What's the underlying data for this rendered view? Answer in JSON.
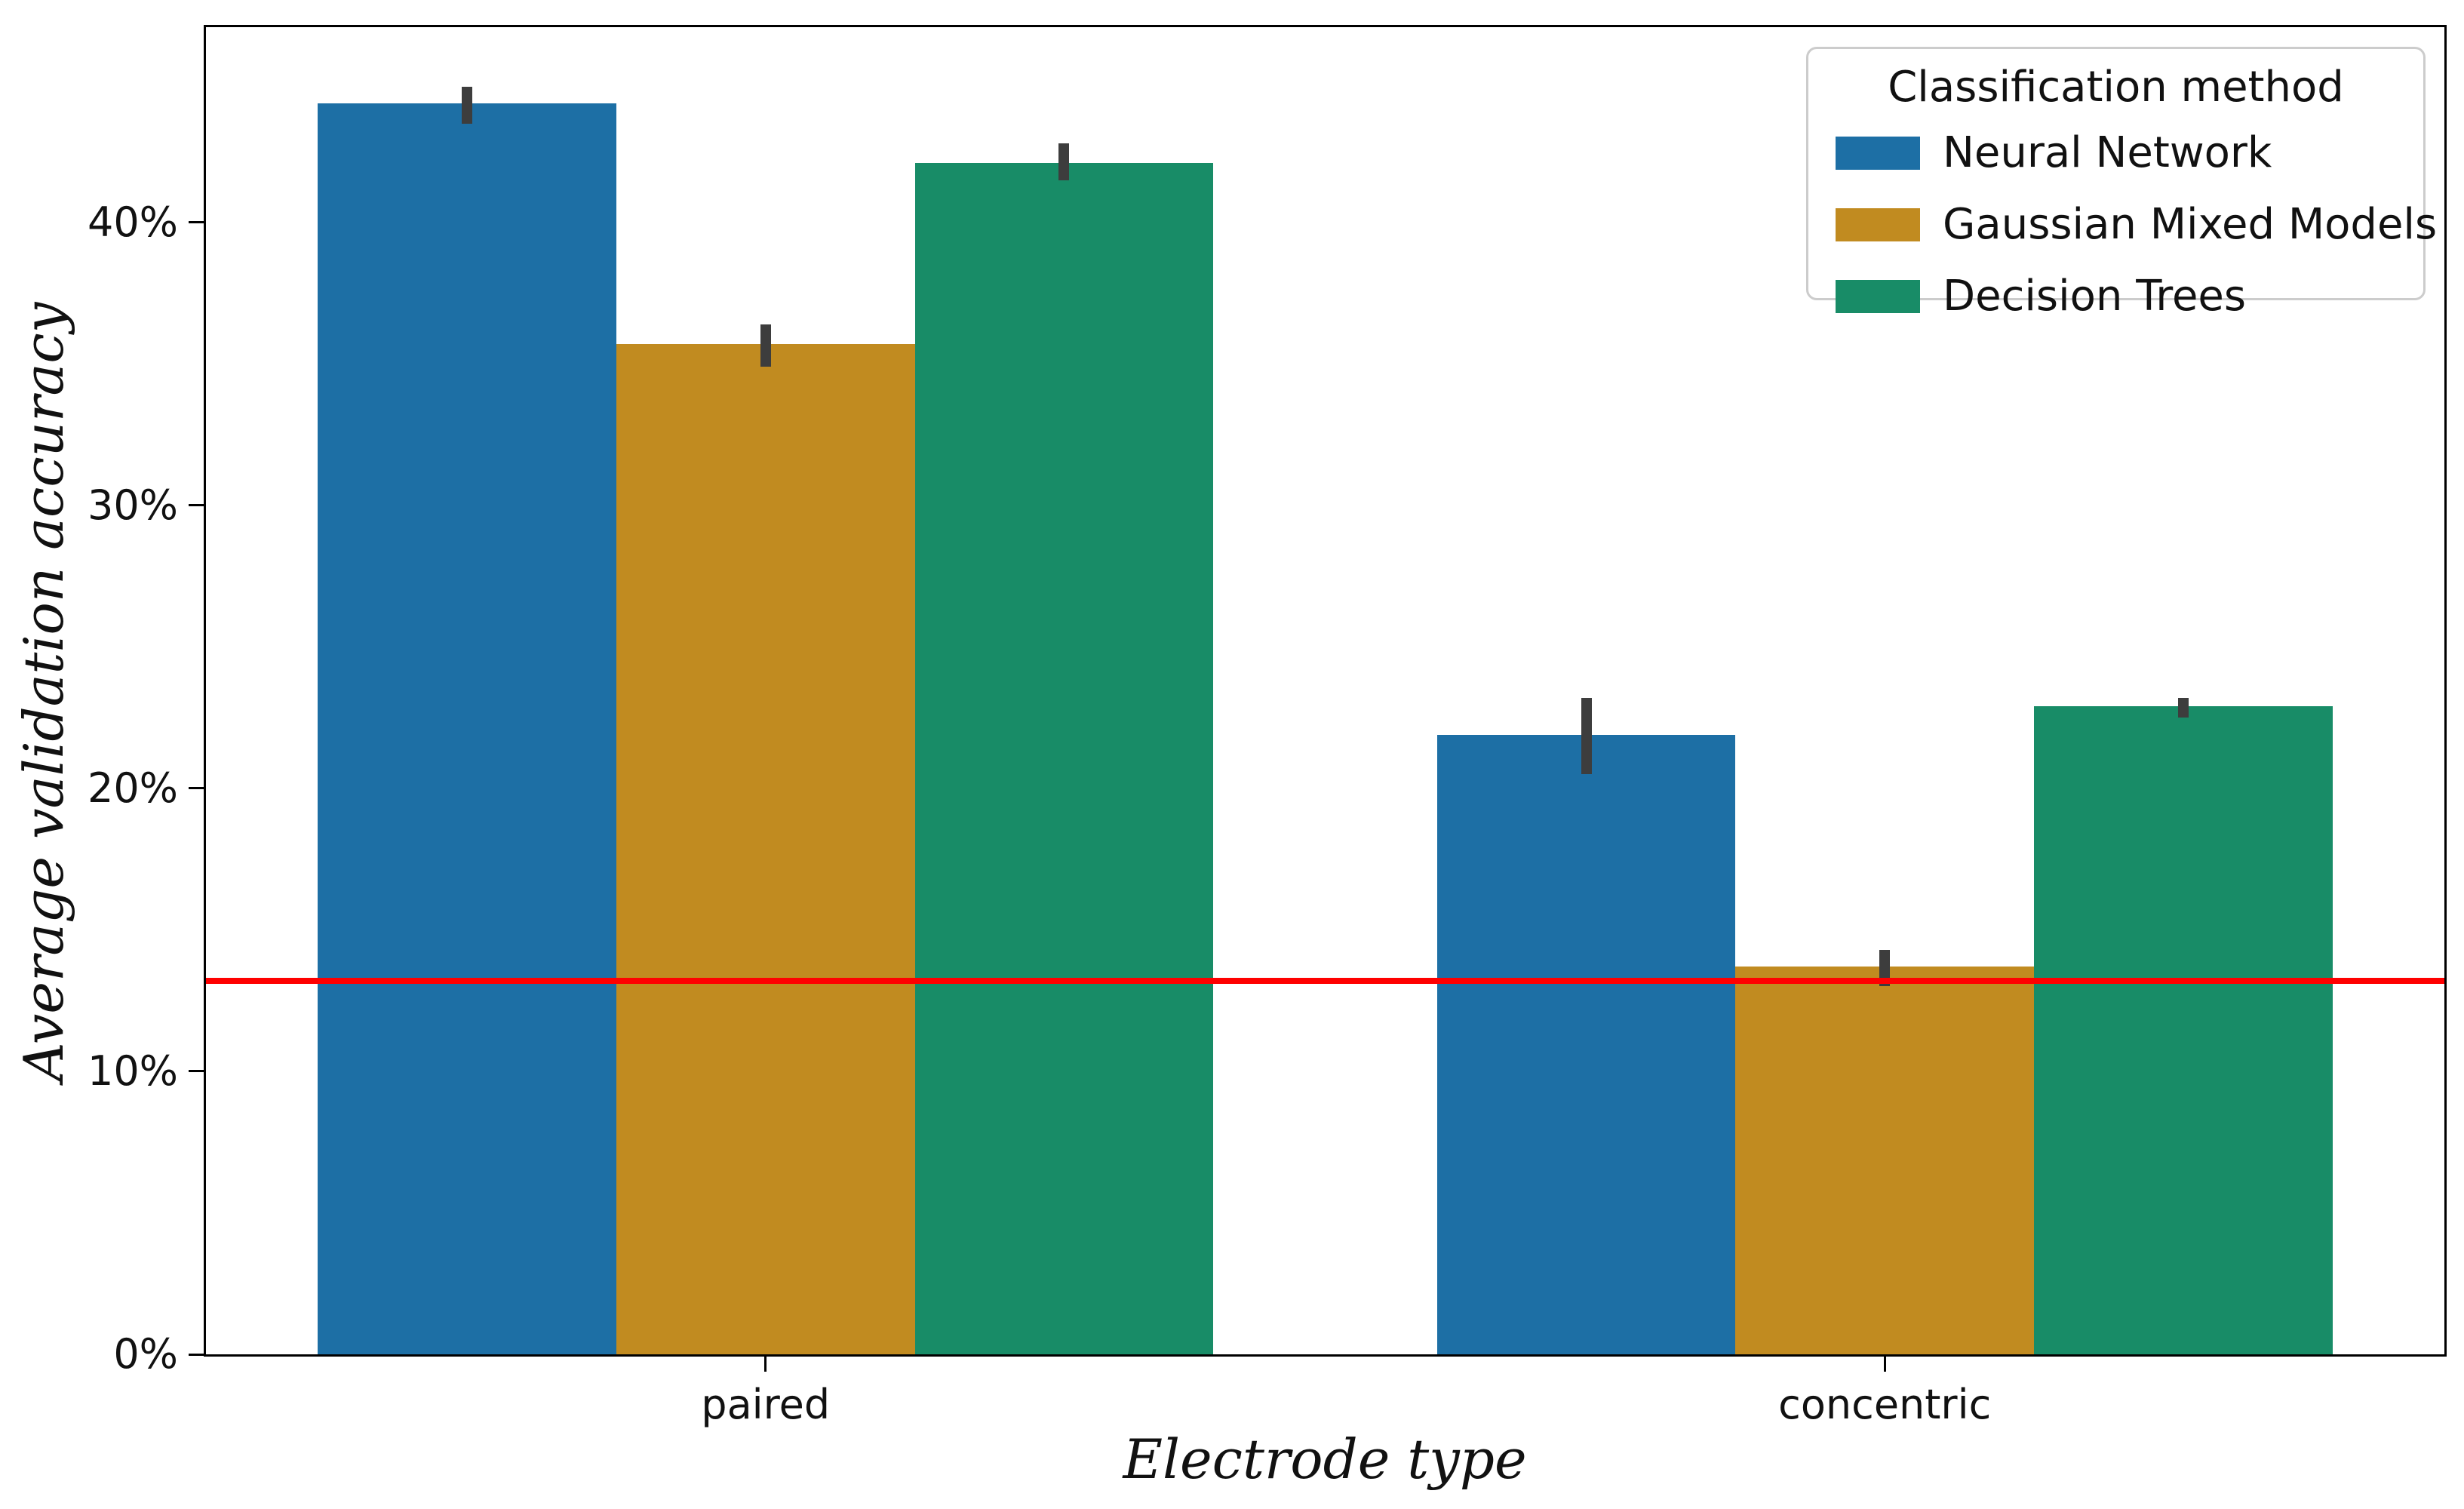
{
  "chart_data": {
    "type": "bar",
    "title": "",
    "xlabel": "Electrode type",
    "ylabel": "Average validation accuracy",
    "categories": [
      "paired",
      "concentric"
    ],
    "series": [
      {
        "name": "Neural Network",
        "color": "#1d6fa5",
        "values": [
          44.2,
          21.9
        ],
        "err_low": [
          43.5,
          20.5
        ],
        "err_high": [
          44.8,
          23.2
        ]
      },
      {
        "name": "Gaussian Mixed Models",
        "color": "#c18b20",
        "values": [
          35.7,
          13.7
        ],
        "err_low": [
          34.9,
          13.0
        ],
        "err_high": [
          36.4,
          14.3
        ]
      },
      {
        "name": "Decision Trees",
        "color": "#188c67",
        "values": [
          42.1,
          22.9
        ],
        "err_low": [
          41.5,
          22.5
        ],
        "err_high": [
          42.8,
          23.2
        ]
      }
    ],
    "reference_line": {
      "value": 13.2,
      "color": "#ff0000"
    },
    "error_bar_color": "#3d3d3d",
    "y_tick_labels": [
      "0%",
      "10%",
      "20%",
      "30%",
      "40%"
    ],
    "y_tick_values": [
      0,
      10,
      20,
      30,
      40
    ],
    "ylim": [
      0,
      46.9
    ],
    "xlim": [
      -0.5,
      1.5
    ],
    "group_width": 0.8,
    "grid": false,
    "legend_title": "Classification method",
    "legend_position": "upper right"
  }
}
